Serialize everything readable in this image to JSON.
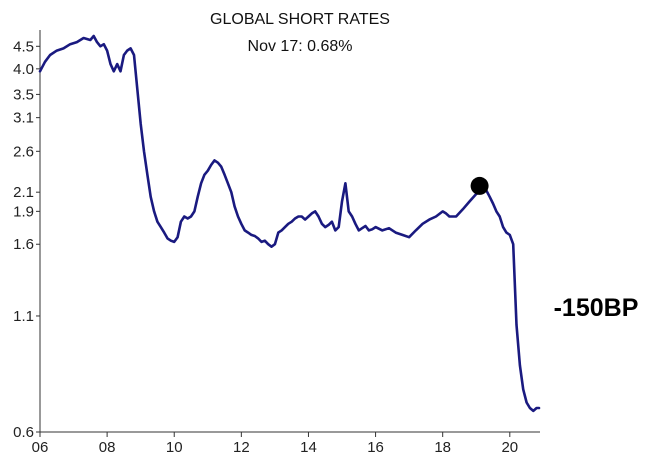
{
  "chart_data": {
    "type": "line",
    "title": "GLOBAL SHORT RATES",
    "subtitle": "Nov 17: 0.68%",
    "annotation": "-150BP",
    "xlabel": "",
    "ylabel": "",
    "y_scale": "log",
    "xlim": [
      2006.0,
      2020.9
    ],
    "ylim": [
      0.6,
      4.9
    ],
    "x_ticks": [
      {
        "value": 2006,
        "label": "06"
      },
      {
        "value": 2008,
        "label": "08"
      },
      {
        "value": 2010,
        "label": "10"
      },
      {
        "value": 2012,
        "label": "12"
      },
      {
        "value": 2014,
        "label": "14"
      },
      {
        "value": 2016,
        "label": "16"
      },
      {
        "value": 2018,
        "label": "18"
      },
      {
        "value": 2020,
        "label": "20"
      }
    ],
    "y_ticks": [
      {
        "value": 0.6,
        "label": "0.6"
      },
      {
        "value": 1.1,
        "label": "1.1"
      },
      {
        "value": 1.6,
        "label": "1.6"
      },
      {
        "value": 1.9,
        "label": "1.9"
      },
      {
        "value": 2.1,
        "label": "2.1"
      },
      {
        "value": 2.6,
        "label": "2.6"
      },
      {
        "value": 3.1,
        "label": "3.1"
      },
      {
        "value": 3.5,
        "label": "3.5"
      },
      {
        "value": 4.0,
        "label": "4.0"
      },
      {
        "value": 4.5,
        "label": "4.5"
      }
    ],
    "grid": false,
    "marker_point": {
      "x": 2019.1,
      "y": 2.17
    },
    "series": [
      {
        "color": "#1a1a80",
        "x": [
          2006.0,
          2006.15,
          2006.3,
          2006.5,
          2006.7,
          2006.9,
          2007.1,
          2007.3,
          2007.5,
          2007.6,
          2007.7,
          2007.8,
          2007.9,
          2008.0,
          2008.1,
          2008.2,
          2008.3,
          2008.4,
          2008.5,
          2008.6,
          2008.7,
          2008.8,
          2008.9,
          2009.0,
          2009.1,
          2009.2,
          2009.3,
          2009.4,
          2009.5,
          2009.6,
          2009.7,
          2009.8,
          2009.9,
          2010.0,
          2010.1,
          2010.2,
          2010.3,
          2010.4,
          2010.5,
          2010.6,
          2010.7,
          2010.8,
          2010.9,
          2011.0,
          2011.1,
          2011.2,
          2011.3,
          2011.4,
          2011.5,
          2011.6,
          2011.7,
          2011.8,
          2011.9,
          2012.0,
          2012.1,
          2012.2,
          2012.3,
          2012.4,
          2012.5,
          2012.6,
          2012.7,
          2012.8,
          2012.9,
          2013.0,
          2013.1,
          2013.2,
          2013.3,
          2013.4,
          2013.5,
          2013.6,
          2013.7,
          2013.8,
          2013.9,
          2014.0,
          2014.1,
          2014.2,
          2014.3,
          2014.4,
          2014.5,
          2014.6,
          2014.7,
          2014.8,
          2014.9,
          2015.0,
          2015.1,
          2015.2,
          2015.3,
          2015.4,
          2015.5,
          2015.6,
          2015.7,
          2015.8,
          2015.9,
          2016.0,
          2016.2,
          2016.4,
          2016.6,
          2016.8,
          2017.0,
          2017.2,
          2017.4,
          2017.6,
          2017.8,
          2018.0,
          2018.1,
          2018.2,
          2018.4,
          2018.6,
          2018.8,
          2019.0,
          2019.1,
          2019.2,
          2019.3,
          2019.4,
          2019.5,
          2019.6,
          2019.7,
          2019.8,
          2019.9,
          2020.0,
          2020.1,
          2020.2,
          2020.3,
          2020.4,
          2020.5,
          2020.6,
          2020.7,
          2020.8,
          2020.87
        ],
        "y": [
          3.95,
          4.15,
          4.3,
          4.4,
          4.45,
          4.55,
          4.6,
          4.7,
          4.65,
          4.75,
          4.6,
          4.5,
          4.55,
          4.4,
          4.1,
          3.95,
          4.1,
          3.95,
          4.3,
          4.4,
          4.45,
          4.3,
          3.6,
          3.0,
          2.6,
          2.3,
          2.05,
          1.9,
          1.8,
          1.75,
          1.7,
          1.65,
          1.63,
          1.62,
          1.66,
          1.8,
          1.85,
          1.83,
          1.85,
          1.9,
          2.05,
          2.2,
          2.3,
          2.35,
          2.42,
          2.48,
          2.45,
          2.4,
          2.3,
          2.2,
          2.1,
          1.95,
          1.85,
          1.78,
          1.72,
          1.7,
          1.68,
          1.67,
          1.65,
          1.62,
          1.63,
          1.6,
          1.58,
          1.6,
          1.7,
          1.72,
          1.75,
          1.78,
          1.8,
          1.83,
          1.85,
          1.85,
          1.82,
          1.85,
          1.88,
          1.9,
          1.85,
          1.78,
          1.75,
          1.77,
          1.8,
          1.72,
          1.75,
          2.0,
          2.2,
          1.9,
          1.85,
          1.78,
          1.72,
          1.74,
          1.76,
          1.72,
          1.73,
          1.75,
          1.72,
          1.74,
          1.7,
          1.68,
          1.66,
          1.72,
          1.78,
          1.82,
          1.85,
          1.9,
          1.88,
          1.85,
          1.85,
          1.92,
          2.0,
          2.08,
          2.1,
          2.17,
          2.12,
          2.05,
          1.98,
          1.9,
          1.85,
          1.75,
          1.7,
          1.68,
          1.6,
          1.05,
          0.85,
          0.75,
          0.7,
          0.68,
          0.67,
          0.68,
          0.68
        ]
      }
    ]
  }
}
